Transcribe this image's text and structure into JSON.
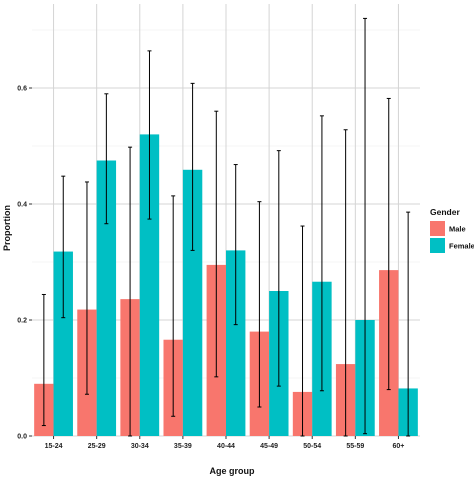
{
  "chart_data": {
    "type": "bar",
    "xlabel": "Age group",
    "ylabel": "Proportion",
    "categories": [
      "15-24",
      "25-29",
      "30-34",
      "35-39",
      "40-44",
      "45-49",
      "50-54",
      "55-59",
      "60+"
    ],
    "ylim": [
      0,
      0.75
    ],
    "yticks": [
      0.0,
      0.2,
      0.4,
      0.6
    ],
    "ytick_labels": [
      "0.0",
      "0.2",
      "0.4",
      "0.6"
    ],
    "grid": true,
    "legend": {
      "title": "Gender",
      "placement": "right"
    },
    "series": [
      {
        "name": "Male",
        "color": "#F8766D",
        "values": [
          0.09,
          0.218,
          0.236,
          0.166,
          0.295,
          0.18,
          0.076,
          0.124,
          0.286
        ],
        "lower": [
          0.018,
          0.072,
          0.0,
          0.034,
          0.102,
          0.05,
          0.0,
          0.0,
          0.08
        ],
        "upper": [
          0.244,
          0.438,
          0.498,
          0.414,
          0.56,
          0.404,
          0.362,
          0.528,
          0.582
        ]
      },
      {
        "name": "Female",
        "color": "#00BFC4",
        "values": [
          0.318,
          0.475,
          0.52,
          0.459,
          0.32,
          0.25,
          0.266,
          0.2,
          0.082
        ],
        "lower": [
          0.204,
          0.366,
          0.374,
          0.32,
          0.192,
          0.086,
          0.078,
          0.004,
          0.0
        ],
        "upper": [
          0.448,
          0.59,
          0.664,
          0.608,
          0.468,
          0.492,
          0.552,
          0.72,
          0.386
        ]
      }
    ]
  }
}
